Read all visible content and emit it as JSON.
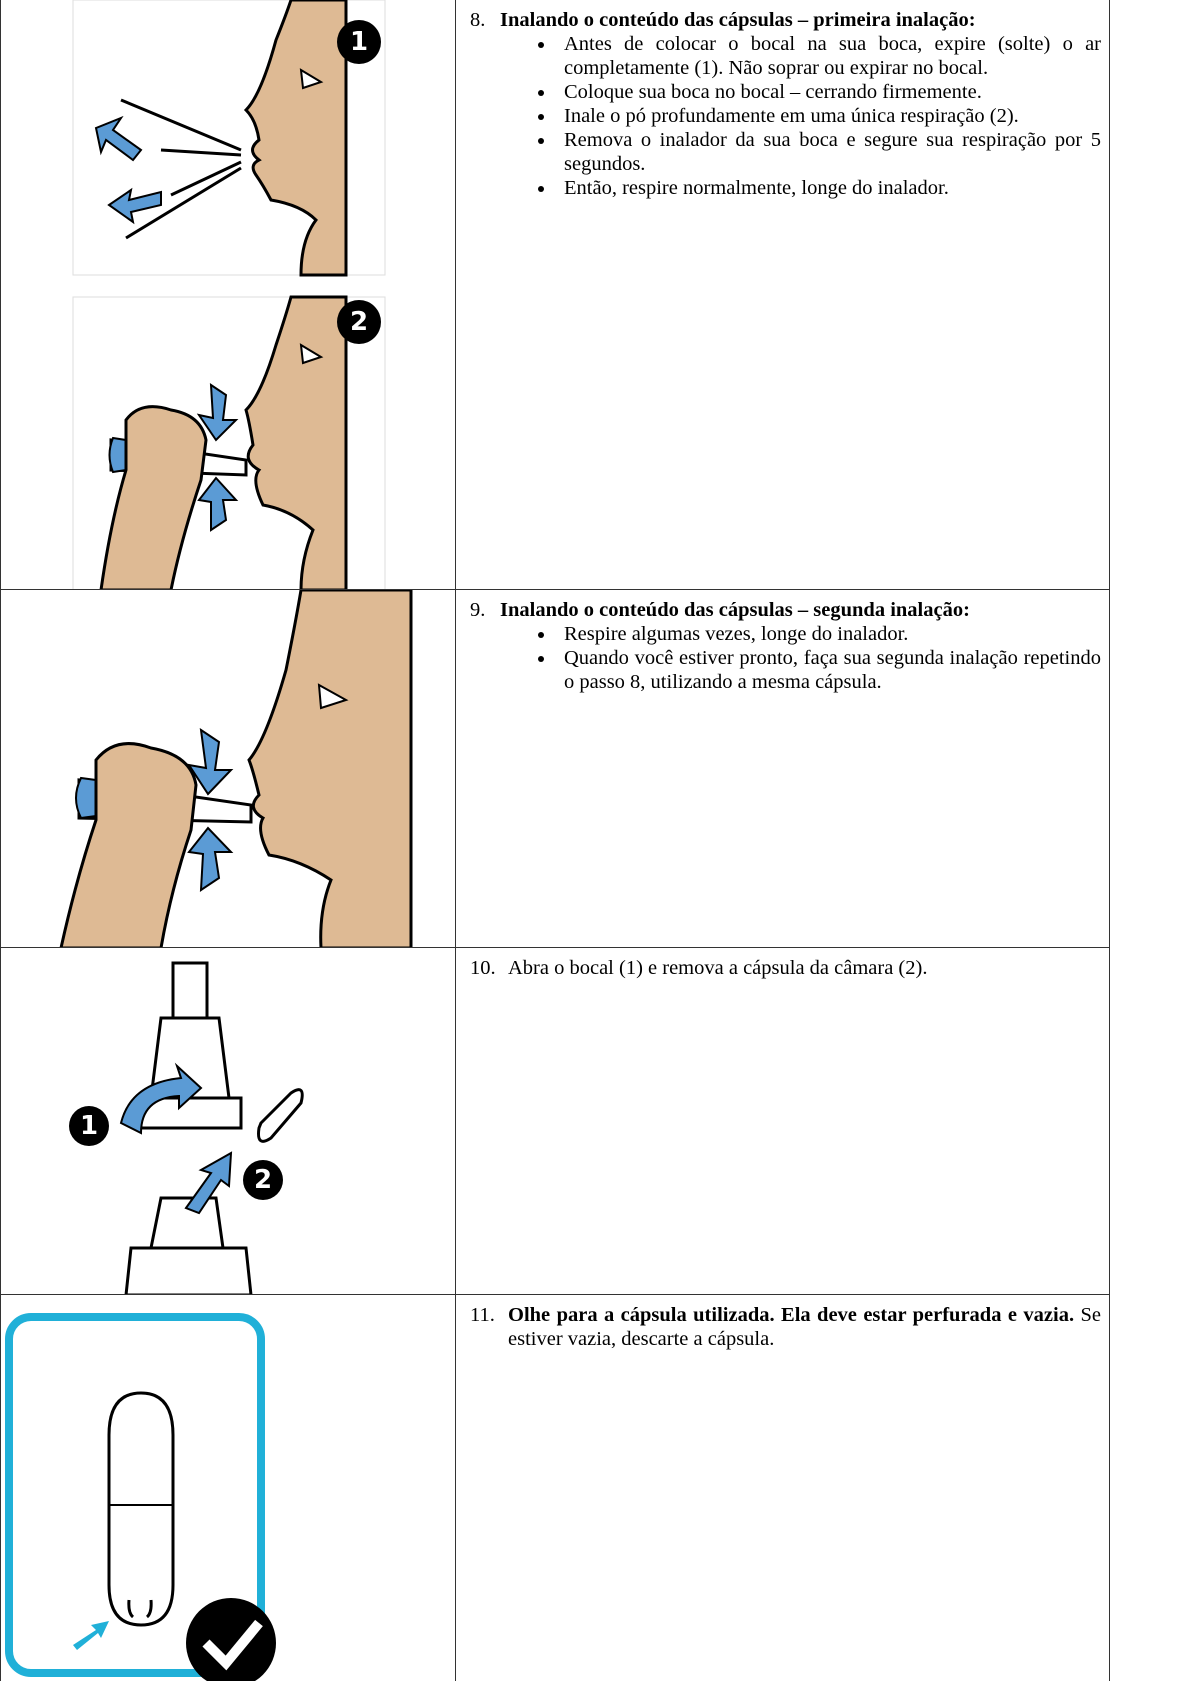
{
  "steps": [
    {
      "number": "8.",
      "heading": "Inalando o conteúdo das cápsulas – primeira inalação:",
      "bullets": [
        "Antes de colocar o bocal na sua boca, expire (solte) o ar completamente (1). Não soprar ou expirar no bocal.",
        "Coloque sua boca no bocal – cerrando firmemente.",
        "Inale o pó profundamente em uma única respiração (2).",
        "Remova o inalador da sua boca e segure sua respiração por 5 segundos.",
        "Então, respire normalmente, longe do inalador."
      ],
      "markers": [
        "1",
        "2"
      ]
    },
    {
      "number": "9.",
      "heading": "Inalando o conteúdo das cápsulas – segunda inalação:",
      "bullets": [
        "Respire algumas vezes, longe do inalador.",
        "Quando você estiver pronto, faça sua segunda inalação repetindo o passo 8, utilizando a mesma cápsula."
      ]
    },
    {
      "number": "10.",
      "text": "Abra o bocal (1) e remova a cápsula da câmara (2).",
      "markers": [
        "1",
        "2"
      ]
    },
    {
      "number": "11.",
      "heading": "Olhe para a cápsula utilizada. Ela deve estar perfurada e vazia.",
      "text": "Se estiver vazia, descarte a cápsula."
    }
  ]
}
